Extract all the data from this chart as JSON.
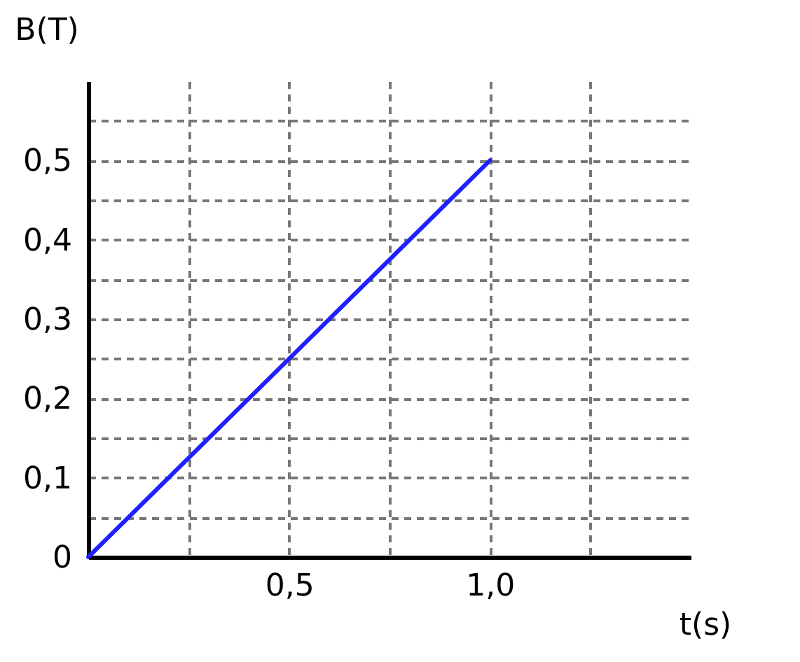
{
  "chart_data": {
    "type": "line",
    "xlabel": "t(s)",
    "ylabel": "B(T)",
    "xlim": [
      0,
      1.5
    ],
    "ylim": [
      0,
      0.6
    ],
    "xticks": [
      {
        "value": 0.25,
        "label": null
      },
      {
        "value": 0.5,
        "label": "0,5"
      },
      {
        "value": 0.75,
        "label": null
      },
      {
        "value": 1,
        "label": "1,0"
      },
      {
        "value": 1.25,
        "label": null
      }
    ],
    "yticks": [
      {
        "value": 0,
        "label": "0"
      },
      {
        "value": 0.05,
        "label": null
      },
      {
        "value": 0.1,
        "label": "0,1"
      },
      {
        "value": 0.15,
        "label": null
      },
      {
        "value": 0.2,
        "label": "0,2"
      },
      {
        "value": 0.25,
        "label": null
      },
      {
        "value": 0.3,
        "label": "0,3"
      },
      {
        "value": 0.35,
        "label": null
      },
      {
        "value": 0.4,
        "label": "0,4"
      },
      {
        "value": 0.45,
        "label": null
      },
      {
        "value": 0.5,
        "label": "0,5"
      },
      {
        "value": 0.55,
        "label": null
      }
    ],
    "grid": true,
    "line_style": "solid",
    "marker": "none",
    "series": [
      {
        "color": "#1f1fff",
        "x": [
          0,
          1
        ],
        "values": [
          0,
          0.5
        ]
      }
    ]
  }
}
